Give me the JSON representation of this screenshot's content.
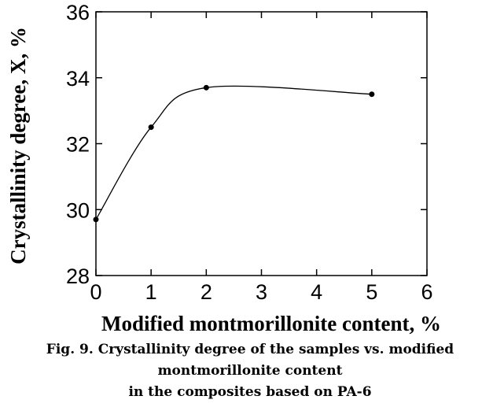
{
  "chart_data": {
    "type": "scatter",
    "smooth": true,
    "color": "#000000",
    "x": [
      0,
      1,
      2,
      5
    ],
    "values": [
      29.7,
      32.5,
      33.7,
      33.5
    ],
    "xlim": [
      0,
      6
    ],
    "xticks": [
      0,
      1,
      2,
      3,
      4,
      5,
      6
    ],
    "ylim": [
      28,
      36
    ],
    "yticks": [
      28,
      30,
      32,
      34,
      36
    ],
    "xlabel": "Modified montmorillonite content, %",
    "ylabel": "Crystallinity degree, X, %",
    "caption": [
      "Fig. 9. Crystallinity degree of the samples vs. modified",
      "montmorillonite content",
      "in the composites based on PA-6"
    ]
  }
}
